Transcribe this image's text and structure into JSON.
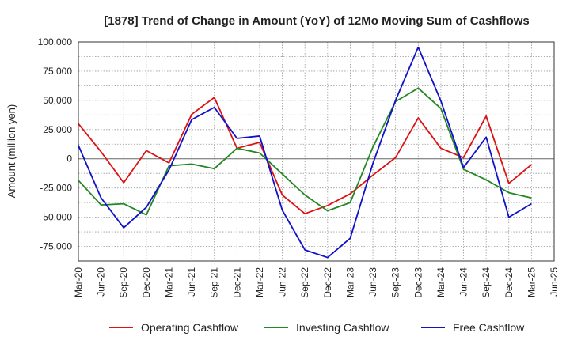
{
  "chart_data": {
    "type": "line",
    "title": "[1878]  Trend of Change in Amount (YoY) of 12Mo Moving Sum of Cashflows",
    "xlabel": "",
    "ylabel": "Amount (million yen)",
    "ylim": [
      -87500,
      100000
    ],
    "y_ticks": [
      100000,
      75000,
      50000,
      25000,
      0,
      -25000,
      -50000,
      -75000
    ],
    "y_tick_labels": [
      "100,000",
      "75,000",
      "50,000",
      "25,000",
      "0",
      "-25,000",
      "-50,000",
      "-75,000"
    ],
    "grid": true,
    "legend_position": "bottom",
    "categories": [
      "Mar-20",
      "Jun-20",
      "Sep-20",
      "Dec-20",
      "Mar-21",
      "Jun-21",
      "Sep-21",
      "Dec-21",
      "Mar-22",
      "Jun-22",
      "Sep-22",
      "Dec-22",
      "Mar-23",
      "Jun-23",
      "Sep-23",
      "Dec-23",
      "Mar-24",
      "Jun-24",
      "Sep-24",
      "Dec-24",
      "Mar-25",
      "Jun-25"
    ],
    "series": [
      {
        "name": "Operating Cashflow",
        "color": "#dd1111",
        "values": [
          30000,
          6000,
          -20500,
          7000,
          -3500,
          38000,
          52500,
          9000,
          14000,
          -31000,
          -47000,
          -40000,
          -30000,
          -14000,
          1000,
          35000,
          9000,
          1000,
          36500,
          -21000,
          -5000,
          null
        ]
      },
      {
        "name": "Investing Cashflow",
        "color": "#228822",
        "values": [
          -18500,
          -39500,
          -38500,
          -48000,
          -6000,
          -4500,
          -8500,
          9000,
          5000,
          -13000,
          -31000,
          -44500,
          -37500,
          10000,
          49000,
          60500,
          43000,
          -9000,
          -18000,
          -29000,
          -33500,
          null
        ]
      },
      {
        "name": "Free Cashflow",
        "color": "#1111cc",
        "values": [
          11500,
          -33500,
          -59000,
          -41500,
          -9500,
          33500,
          44000,
          17500,
          19500,
          -44000,
          -78000,
          -84500,
          -68000,
          -4000,
          50000,
          95500,
          49500,
          -7500,
          18500,
          -50000,
          -38500,
          null
        ]
      }
    ]
  }
}
